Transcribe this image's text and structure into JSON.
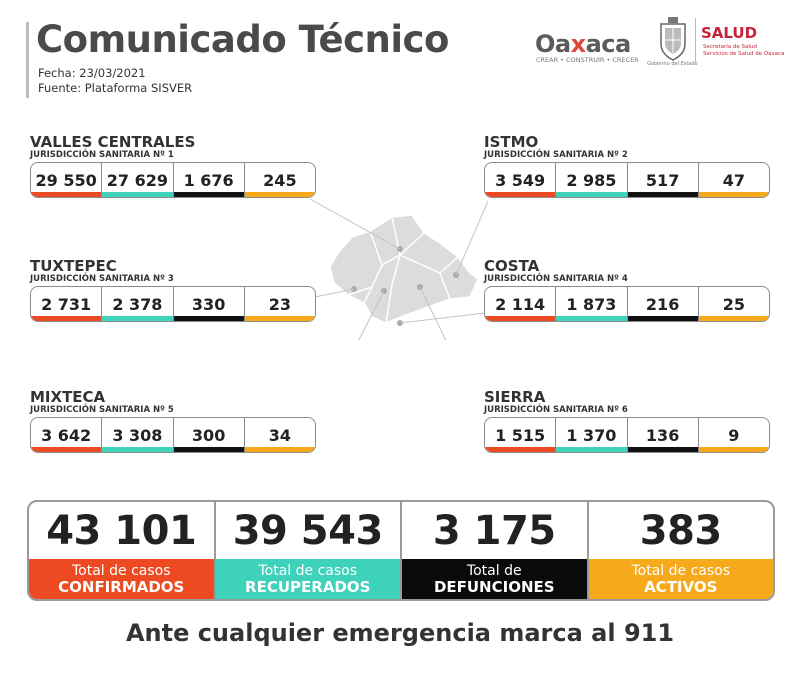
{
  "header": {
    "title": "Comunicado Técnico",
    "date": "Fecha: 23/03/2021",
    "source": "Fuente: Plataforma SISVER"
  },
  "logos": {
    "oaxaca_prefix": "Oa",
    "oaxaca_x": "x",
    "oaxaca_suffix": "aca",
    "oaxaca_tagline": "CREAR • CONSTRUIR • CRECER",
    "gobierno": "Gobierno del Estado",
    "salud": "SALUD",
    "salud_sub1": "Secretaría de Salud",
    "salud_sub2": "Servicios de Salud de Oaxaca"
  },
  "colors": {
    "confirmed": "#ec4a23",
    "recovered": "#3fd3bb",
    "deaths": "#111111",
    "active": "#f6a91a"
  },
  "regions": [
    {
      "name": "VALLES CENTRALES",
      "jurisdiction": "JURISDICCIÓN SANITARIA Nº 1",
      "values": [
        "29 550",
        "27 629",
        "1 676",
        "245"
      ]
    },
    {
      "name": "ISTMO",
      "jurisdiction": "JURISDICCIÓN SANITARIA Nº 2",
      "values": [
        "3 549",
        "2 985",
        "517",
        "47"
      ]
    },
    {
      "name": "TUXTEPEC",
      "jurisdiction": "JURISDICCIÓN SANITARIA Nº 3",
      "values": [
        "2 731",
        "2 378",
        "330",
        "23"
      ]
    },
    {
      "name": "COSTA",
      "jurisdiction": "JURISDICCIÓN SANITARIA Nº 4",
      "values": [
        "2 114",
        "1 873",
        "216",
        "25"
      ]
    },
    {
      "name": "MIXTECA",
      "jurisdiction": "JURISDICCIÓN SANITARIA Nº 5",
      "values": [
        "3 642",
        "3 308",
        "300",
        "34"
      ]
    },
    {
      "name": "SIERRA",
      "jurisdiction": "JURISDICCIÓN SANITARIA Nº 6",
      "values": [
        "1 515",
        "1 370",
        "136",
        "9"
      ]
    }
  ],
  "totals": [
    {
      "value": "43 101",
      "line1": "Total de casos",
      "line2": "CONFIRMADOS"
    },
    {
      "value": "39 543",
      "line1": "Total de casos",
      "line2": "RECUPERADOS"
    },
    {
      "value": "3 175",
      "line1": "Total de",
      "line2": "DEFUNCIONES"
    },
    {
      "value": "383",
      "line1": "Total de casos",
      "line2": "ACTIVOS"
    }
  ],
  "footer": "Ante cualquier emergencia marca al 911"
}
